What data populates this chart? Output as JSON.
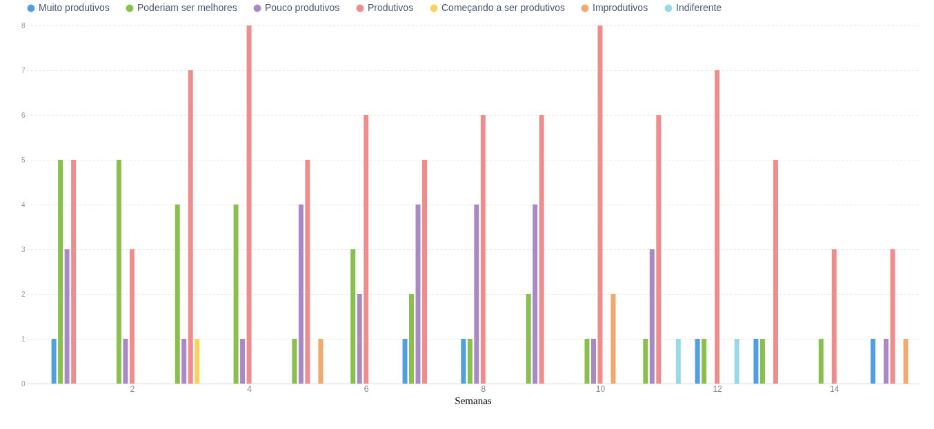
{
  "chart_data": {
    "type": "bar",
    "xlabel": "Semanas",
    "x": [
      1,
      2,
      3,
      4,
      5,
      6,
      7,
      8,
      9,
      10,
      11,
      12,
      13,
      14,
      15
    ],
    "xlim": [
      0.25,
      15.4
    ],
    "xticks": [
      2,
      4,
      6,
      8,
      10,
      12,
      14
    ],
    "ylim": [
      0,
      8
    ],
    "yticks": [
      0,
      1,
      2,
      3,
      4,
      5,
      6,
      7,
      8
    ],
    "grid": "y",
    "legend": "top",
    "series": [
      {
        "name": "Muito produtivos",
        "color": "#509ee3",
        "values": [
          1,
          null,
          null,
          null,
          null,
          null,
          1,
          1,
          null,
          null,
          null,
          1,
          1,
          null,
          1
        ]
      },
      {
        "name": "Poderiam ser melhores",
        "color": "#88bf4d",
        "values": [
          5,
          5,
          4,
          4,
          1,
          3,
          2,
          1,
          2,
          1,
          1,
          1,
          1,
          1,
          null
        ]
      },
      {
        "name": "Pouco produtivos",
        "color": "#a989c5",
        "values": [
          3,
          1,
          1,
          1,
          4,
          2,
          4,
          4,
          4,
          1,
          3,
          null,
          null,
          null,
          1
        ]
      },
      {
        "name": "Produtivos",
        "color": "#ef8c8c",
        "values": [
          5,
          3,
          7,
          8,
          5,
          6,
          5,
          6,
          6,
          8,
          6,
          7,
          5,
          3,
          3
        ]
      },
      {
        "name": "Começando a ser produtivos",
        "color": "#f9d45c",
        "values": [
          null,
          null,
          1,
          null,
          null,
          null,
          null,
          null,
          null,
          null,
          null,
          null,
          null,
          null,
          null
        ]
      },
      {
        "name": "Improdutivos",
        "color": "#f2a86f",
        "values": [
          null,
          null,
          null,
          null,
          1,
          null,
          null,
          null,
          null,
          2,
          null,
          null,
          null,
          null,
          1
        ]
      },
      {
        "name": "Indiferente",
        "color": "#98d9e9",
        "values": [
          null,
          null,
          null,
          null,
          null,
          null,
          null,
          null,
          null,
          null,
          1,
          1,
          null,
          null,
          null
        ]
      }
    ]
  }
}
